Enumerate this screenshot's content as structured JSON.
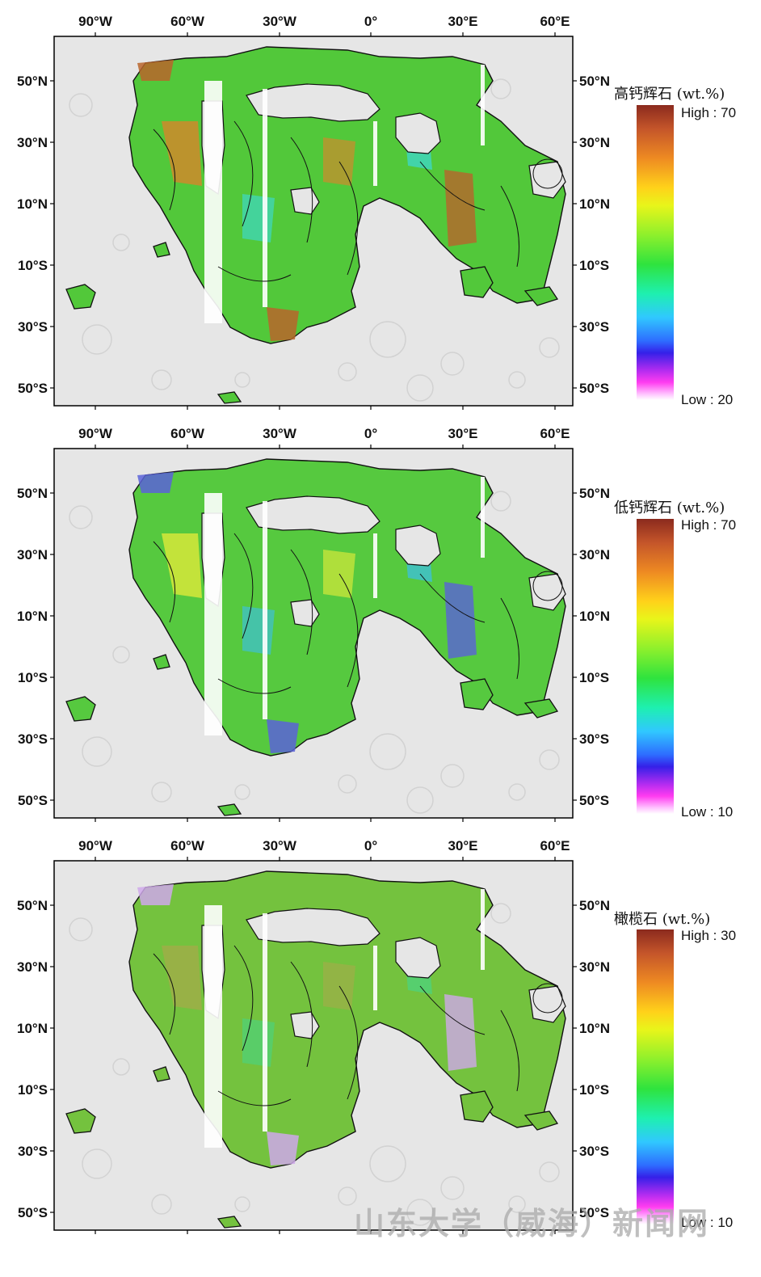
{
  "x_ticks": [
    "90°W",
    "60°W",
    "30°W",
    "0°",
    "30°E",
    "60°E"
  ],
  "y_ticks_left": [
    "50°N",
    "30°N",
    "10°N",
    "10°S",
    "30°S",
    "50°S"
  ],
  "y_ticks_right": [
    "50°N",
    "30°N",
    "10°N",
    "10°S",
    "30°S",
    "50°S"
  ],
  "panels": [
    {
      "title": "高钙辉石 (wt.%)",
      "high": "High : 70",
      "low": "Low : 20",
      "colors": {
        "base": "#52c83a",
        "accent1": "#b8652c",
        "accent2": "#3fd7c4",
        "accent3": "#cf8a2c"
      }
    },
    {
      "title": "低钙辉石 (wt.%)",
      "high": "High : 70",
      "low": "Low : 10",
      "colors": {
        "base": "#56c93f",
        "accent1": "#5a63d8",
        "accent2": "#3fc0d6",
        "accent3": "#d6e83a"
      }
    },
    {
      "title": "橄榄石 (wt.%)",
      "high": "High : 30",
      "low": "Low : 10",
      "colors": {
        "base": "#74c23e",
        "accent1": "#cfa8ea",
        "accent2": "#4fd27a",
        "accent3": "#9fae48"
      }
    }
  ],
  "watermark": "山东大学（威海）新闻网"
}
